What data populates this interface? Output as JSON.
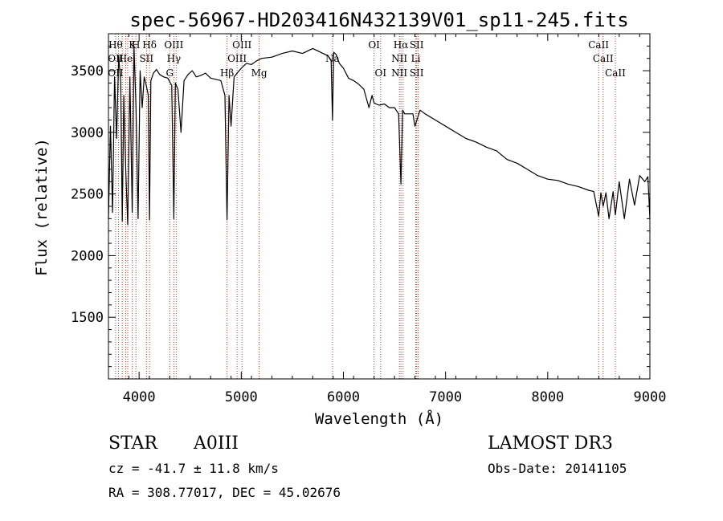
{
  "chart_data": {
    "type": "line",
    "title": "spec-56967-HD203416N432139V01_sp11-245.fits",
    "xlabel": "Wavelength (Å)",
    "ylabel": "Flux (relative)",
    "xlim": [
      3700,
      9000
    ],
    "ylim": [
      1000,
      3800
    ],
    "x_ticks": [
      4000,
      5000,
      6000,
      7000,
      8000,
      9000
    ],
    "y_ticks": [
      1500,
      2000,
      2500,
      3000,
      3500
    ],
    "series": [
      {
        "name": "flux",
        "x": [
          3700,
          3720,
          3740,
          3760,
          3780,
          3800,
          3820,
          3835,
          3850,
          3870,
          3889,
          3910,
          3933,
          3950,
          3970,
          3990,
          4010,
          4030,
          4050,
          4070,
          4090,
          4102,
          4115,
          4140,
          4170,
          4200,
          4240,
          4280,
          4320,
          4340,
          4355,
          4380,
          4410,
          4440,
          4480,
          4520,
          4560,
          4600,
          4650,
          4700,
          4750,
          4800,
          4840,
          4861,
          4880,
          4900,
          4930,
          4960,
          5000,
          5050,
          5100,
          5150,
          5200,
          5300,
          5400,
          5500,
          5600,
          5700,
          5800,
          5850,
          5880,
          5893,
          5905,
          5930,
          5960,
          6000,
          6050,
          6100,
          6150,
          6200,
          6250,
          6280,
          6300,
          6320,
          6350,
          6400,
          6450,
          6500,
          6540,
          6563,
          6580,
          6600,
          6650,
          6680,
          6700,
          6750,
          6800,
          6900,
          7000,
          7100,
          7200,
          7300,
          7400,
          7500,
          7600,
          7700,
          7800,
          7900,
          8000,
          8100,
          8200,
          8300,
          8400,
          8450,
          8498,
          8520,
          8542,
          8570,
          8600,
          8640,
          8662,
          8700,
          8750,
          8800,
          8850,
          8900,
          8950,
          8980,
          9000
        ],
        "values": [
          2300,
          3050,
          2350,
          3450,
          2950,
          3620,
          3400,
          2280,
          3300,
          2680,
          2250,
          3450,
          2350,
          3700,
          3200,
          2300,
          3500,
          3200,
          3450,
          3380,
          3300,
          2290,
          3420,
          3480,
          3510,
          3470,
          3450,
          3440,
          3380,
          2300,
          3400,
          3350,
          3000,
          3420,
          3470,
          3500,
          3450,
          3460,
          3480,
          3440,
          3430,
          3420,
          3300,
          2290,
          3300,
          3050,
          3450,
          3480,
          3520,
          3560,
          3550,
          3580,
          3600,
          3610,
          3640,
          3660,
          3640,
          3680,
          3640,
          3620,
          3580,
          3100,
          3650,
          3630,
          3560,
          3520,
          3440,
          3420,
          3390,
          3350,
          3200,
          3300,
          3240,
          3230,
          3220,
          3230,
          3200,
          3200,
          3150,
          2580,
          3180,
          3150,
          3150,
          3150,
          3050,
          3180,
          3150,
          3100,
          3050,
          3000,
          2950,
          2920,
          2880,
          2850,
          2780,
          2750,
          2700,
          2650,
          2620,
          2610,
          2580,
          2560,
          2530,
          2520,
          2320,
          2510,
          2400,
          2510,
          2300,
          2520,
          2330,
          2600,
          2300,
          2620,
          2410,
          2650,
          2600,
          2640,
          2300
        ]
      }
    ],
    "lines": [
      {
        "wl": 3770,
        "top": "Hθ",
        "mid": "OII",
        "bot": "OII"
      },
      {
        "wl": 3798,
        "top": "",
        "mid": "",
        "bot": ""
      },
      {
        "wl": 3835,
        "top": "",
        "mid": "",
        "bot": ""
      },
      {
        "wl": 3869,
        "top": "",
        "mid": "He",
        "bot": ""
      },
      {
        "wl": 3889,
        "top": "",
        "mid": "",
        "bot": ""
      },
      {
        "wl": 3934,
        "top": "K",
        "mid": "",
        "bot": ""
      },
      {
        "wl": 3969,
        "top": "H",
        "mid": "",
        "bot": ""
      },
      {
        "wl": 4072,
        "top": "",
        "mid": "SII",
        "bot": ""
      },
      {
        "wl": 4102,
        "top": "Hδ",
        "mid": "",
        "bot": ""
      },
      {
        "wl": 4300,
        "top": "",
        "mid": "",
        "bot": "G"
      },
      {
        "wl": 4340,
        "top": "OIII",
        "mid": "Hγ",
        "bot": ""
      },
      {
        "wl": 4363,
        "top": "",
        "mid": "",
        "bot": ""
      },
      {
        "wl": 4861,
        "top": "",
        "mid": "",
        "bot": "Hβ"
      },
      {
        "wl": 4959,
        "top": "",
        "mid": "OIII",
        "bot": ""
      },
      {
        "wl": 5007,
        "top": "OIII",
        "mid": "",
        "bot": ""
      },
      {
        "wl": 5175,
        "top": "",
        "mid": "",
        "bot": "Mg"
      },
      {
        "wl": 5893,
        "top": "",
        "mid": "Na",
        "bot": ""
      },
      {
        "wl": 6300,
        "top": "OI",
        "mid": "",
        "bot": ""
      },
      {
        "wl": 6364,
        "top": "",
        "mid": "",
        "bot": "OI"
      },
      {
        "wl": 6548,
        "top": "",
        "mid": "NII",
        "bot": "NII"
      },
      {
        "wl": 6563,
        "top": "Hα",
        "mid": "",
        "bot": ""
      },
      {
        "wl": 6584,
        "top": "",
        "mid": "",
        "bot": ""
      },
      {
        "wl": 6708,
        "top": "",
        "mid": "Li",
        "bot": ""
      },
      {
        "wl": 6717,
        "top": "SII",
        "mid": "",
        "bot": "SII"
      },
      {
        "wl": 6731,
        "top": "",
        "mid": "",
        "bot": ""
      },
      {
        "wl": 8498,
        "top": "CaII",
        "mid": "",
        "bot": ""
      },
      {
        "wl": 8542,
        "top": "",
        "mid": "CaII",
        "bot": ""
      },
      {
        "wl": 8662,
        "top": "",
        "mid": "",
        "bot": "CaII"
      }
    ]
  },
  "footer": {
    "object_class": "STAR",
    "subclass": "A0III",
    "survey": "LAMOST DR3",
    "redshift": "cz = -41.7 ± 11.8 km/s",
    "obs_date": "Obs-Date: 20141105",
    "coords": "RA = 308.77017, DEC =  45.02676"
  }
}
